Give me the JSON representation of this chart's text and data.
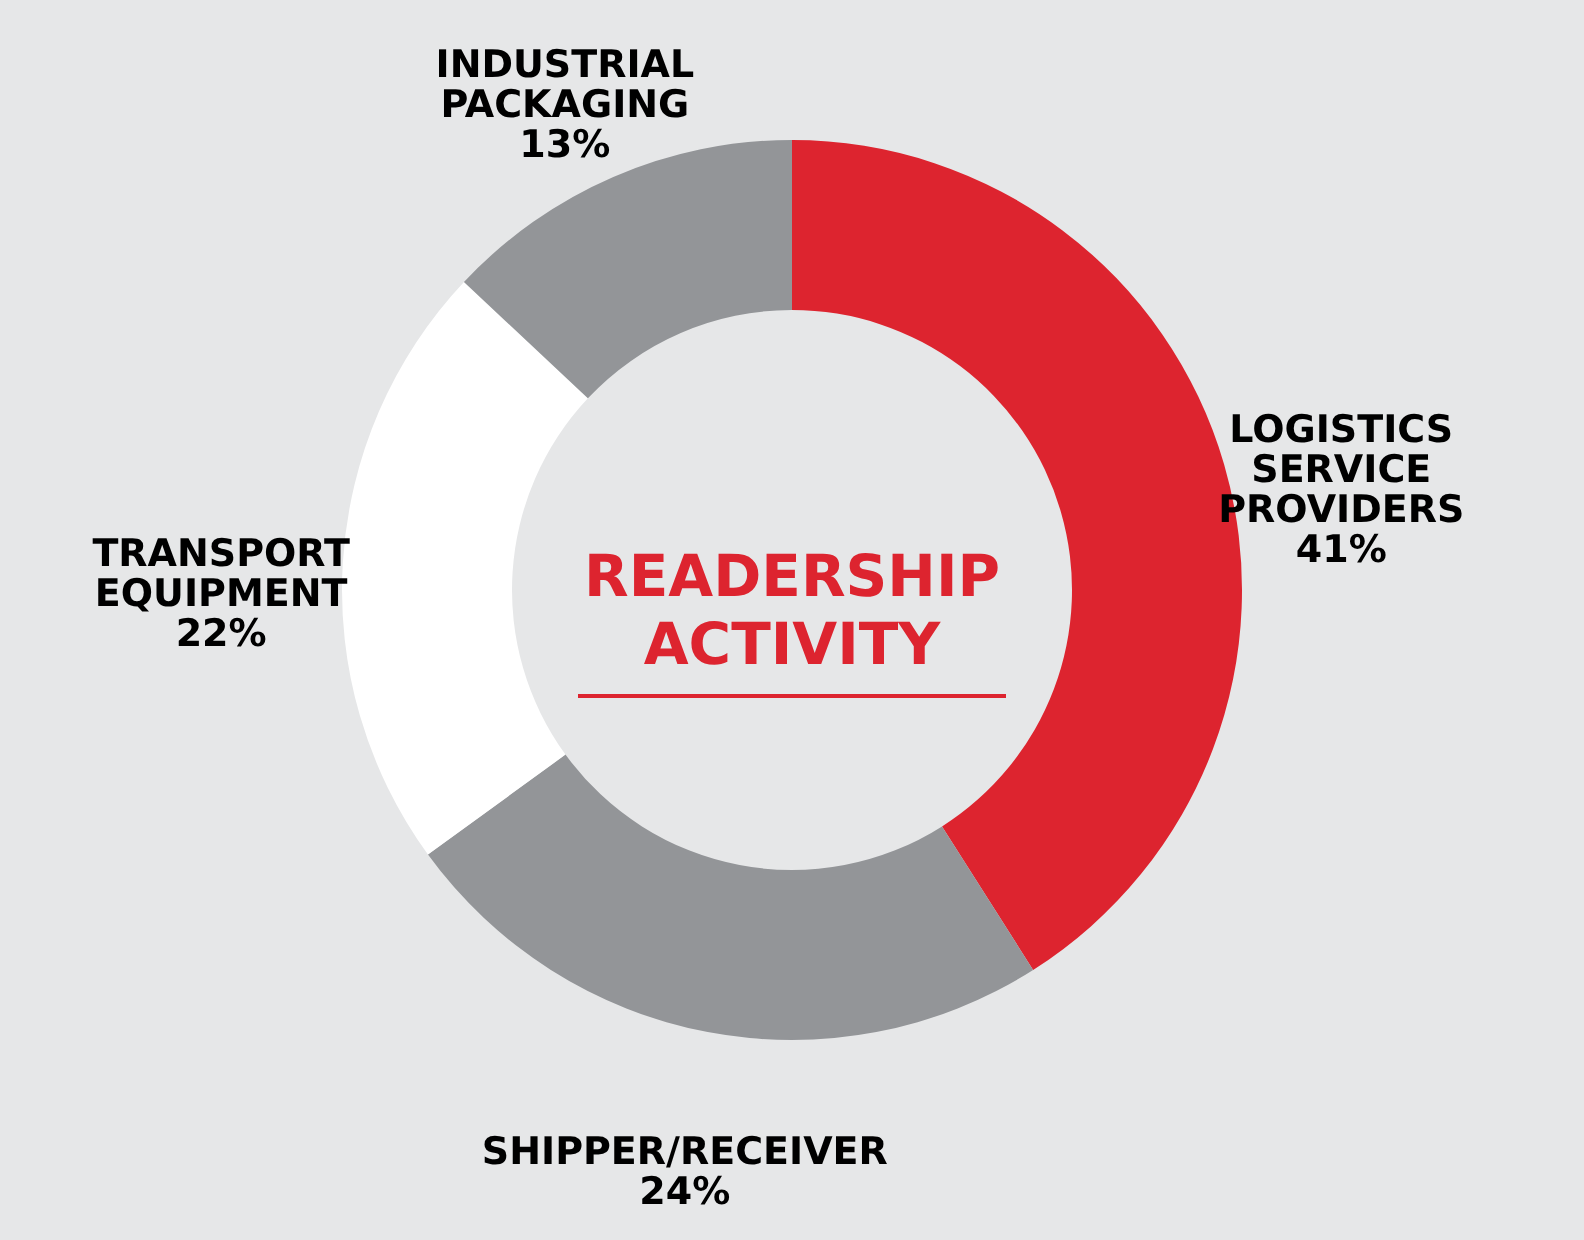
{
  "chart_data": {
    "type": "donut",
    "title": "READERSHIP ACTIVITY",
    "categories": [
      "LOGISTICS SERVICE PROVIDERS",
      "SHIPPER/RECEIVER",
      "TRANSPORT EQUIPMENT",
      "INDUSTRIAL PACKAGING"
    ],
    "values": [
      41,
      24,
      22,
      13
    ],
    "colors": [
      "#dd242f",
      "#939598",
      "#ffffff",
      "#939598"
    ],
    "value_labels": [
      "41%",
      "24%",
      "22%",
      "13%"
    ]
  }
}
